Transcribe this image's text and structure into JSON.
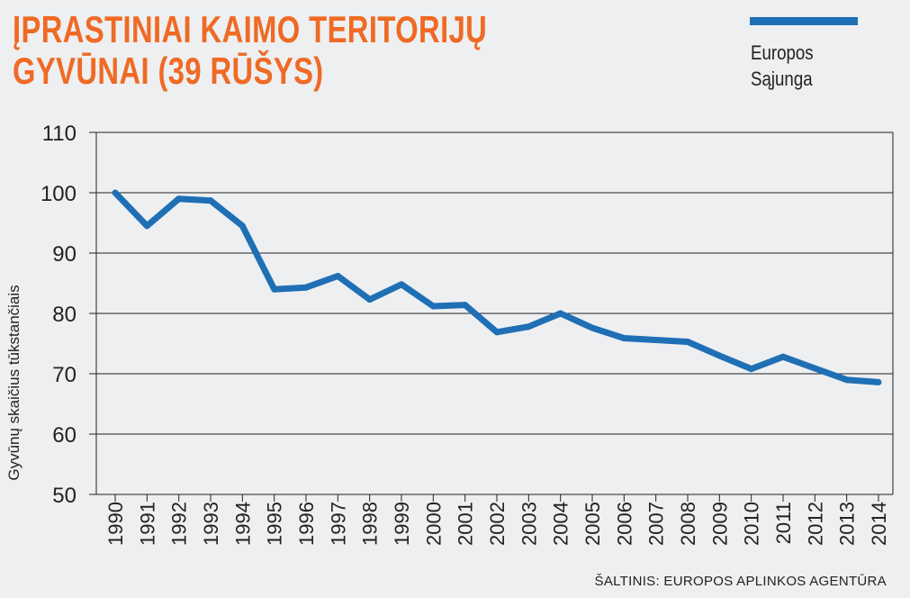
{
  "title_lines": [
    "ĮPRASTINIAI KAIMO TERITORIJŲ",
    "GYVŪNAI (39 RŪŠYS)"
  ],
  "source": "ŠALTINIS: EUROPOS APLINKOS AGENTŪRA",
  "colors": {
    "title": "#ef6a24",
    "series": "#1f6fb5",
    "background": "#eeeff1",
    "axis": "#222222"
  },
  "chart_data": {
    "type": "line",
    "ylabel": "Gyvūnų skaičius tūkstančiais",
    "ylim": [
      50,
      110
    ],
    "yticks": [
      50,
      60,
      70,
      80,
      90,
      100,
      110
    ],
    "grid": "horizontal",
    "legend_position": "top-right",
    "categories": [
      "1990",
      "1991",
      "1992",
      "1993",
      "1994",
      "1995",
      "1996",
      "1997",
      "1998",
      "1999",
      "2000",
      "2001",
      "2002",
      "2003",
      "2004",
      "2005",
      "2006",
      "2007",
      "2008",
      "2009",
      "2010",
      "2011",
      "2012",
      "2013",
      "2014"
    ],
    "series": [
      {
        "name_lines": [
          "Europos",
          "Sąjunga"
        ],
        "values": [
          100,
          94.5,
          99,
          98.7,
          94.5,
          84,
          84.3,
          86.2,
          82.3,
          84.8,
          81.2,
          81.4,
          76.9,
          77.8,
          80,
          77.6,
          75.9,
          75.6,
          75.3,
          73,
          70.8,
          72.8,
          70.9,
          69,
          68.6
        ]
      }
    ]
  }
}
